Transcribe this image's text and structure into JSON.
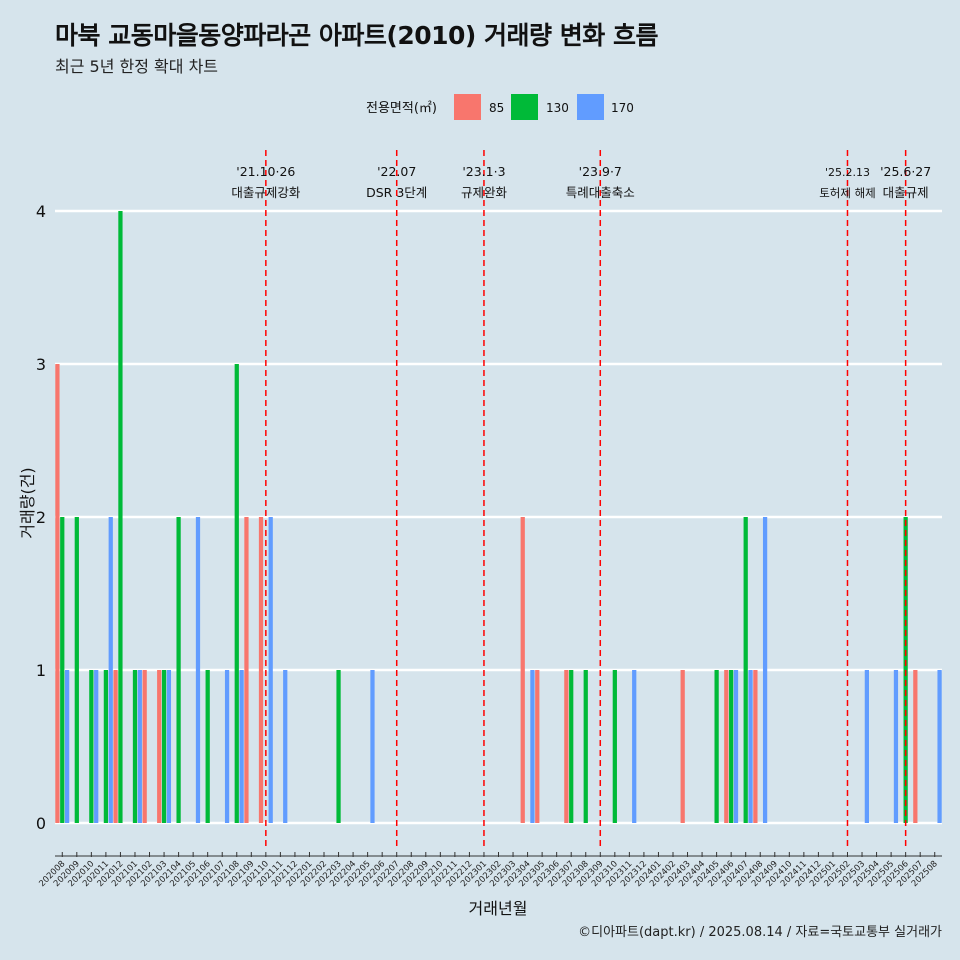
{
  "title": "마북 교동마을동양파라곤 아파트(2010) 거래량 변화 흐름",
  "subtitle": "최근 5년 한정 확대 차트",
  "caption": "©디아파트(dapt.kr) / 2025.08.14 / 자료=국토교통부 실거래가",
  "colors": {
    "background": "#d6e4ec",
    "85": "#f8766d",
    "130": "#00ba38",
    "170": "#619cff",
    "event_line": "#ff0000"
  },
  "chart_data": {
    "type": "bar",
    "xlabel": "거래년월",
    "ylabel": "거래량(건)",
    "ylim": [
      0,
      4
    ],
    "yticks": [
      0,
      1,
      2,
      3,
      4
    ],
    "legend": {
      "title": "전용면적(㎡)",
      "position": "top"
    },
    "categories": [
      "202008",
      "202009",
      "202010",
      "202011",
      "202012",
      "202101",
      "202102",
      "202103",
      "202104",
      "202105",
      "202106",
      "202107",
      "202108",
      "202109",
      "202110",
      "202111",
      "202112",
      "202201",
      "202202",
      "202203",
      "202204",
      "202205",
      "202206",
      "202207",
      "202208",
      "202209",
      "202210",
      "202211",
      "202212",
      "202301",
      "202302",
      "202303",
      "202304",
      "202305",
      "202306",
      "202307",
      "202308",
      "202309",
      "202310",
      "202311",
      "202312",
      "202401",
      "202402",
      "202403",
      "202404",
      "202405",
      "202406",
      "202407",
      "202408",
      "202409",
      "202410",
      "202411",
      "202412",
      "202501",
      "202502",
      "202503",
      "202504",
      "202505",
      "202506",
      "202507",
      "202508"
    ],
    "series": [
      {
        "name": "85",
        "color": "#f8766d",
        "values": [
          3,
          0,
          0,
          0,
          1,
          0,
          1,
          1,
          0,
          0,
          0,
          0,
          0,
          2,
          2,
          0,
          0,
          0,
          0,
          0,
          0,
          0,
          0,
          0,
          0,
          0,
          0,
          0,
          0,
          0,
          0,
          0,
          2,
          1,
          0,
          1,
          0,
          0,
          0,
          0,
          0,
          0,
          0,
          1,
          0,
          0,
          1,
          0,
          1,
          0,
          0,
          0,
          0,
          0,
          0,
          0,
          0,
          0,
          0,
          1,
          0
        ]
      },
      {
        "name": "130",
        "color": "#00ba38",
        "values": [
          2,
          2,
          1,
          1,
          4,
          1,
          0,
          1,
          2,
          0,
          1,
          0,
          3,
          0,
          0,
          0,
          0,
          0,
          0,
          1,
          0,
          0,
          0,
          0,
          0,
          0,
          0,
          0,
          0,
          0,
          0,
          0,
          0,
          0,
          0,
          1,
          1,
          0,
          1,
          0,
          0,
          0,
          0,
          0,
          0,
          1,
          1,
          2,
          0,
          0,
          0,
          0,
          0,
          0,
          0,
          0,
          0,
          0,
          2,
          0,
          0
        ]
      },
      {
        "name": "170",
        "color": "#619cff",
        "values": [
          1,
          0,
          1,
          2,
          0,
          1,
          0,
          1,
          0,
          2,
          0,
          1,
          1,
          0,
          2,
          1,
          0,
          0,
          0,
          0,
          0,
          1,
          0,
          0,
          0,
          0,
          0,
          0,
          0,
          0,
          0,
          0,
          1,
          0,
          0,
          0,
          0,
          0,
          0,
          1,
          0,
          0,
          0,
          0,
          0,
          0,
          1,
          1,
          2,
          0,
          0,
          0,
          0,
          0,
          0,
          1,
          0,
          1,
          0,
          0,
          1
        ]
      }
    ],
    "events": [
      {
        "at": "202110",
        "date": "'21.10·26",
        "label": "대출규제강화"
      },
      {
        "at": "202207",
        "date": "'22.07",
        "label": "DSR 3단계"
      },
      {
        "at": "202301",
        "date": "'23.1·3",
        "label": "규제완화"
      },
      {
        "at": "202309",
        "date": "'23.9·7",
        "label": "특례대출축소"
      },
      {
        "at": "202502",
        "date": "'25.2.13",
        "label": "토허제 해제"
      },
      {
        "at": "202506",
        "date": "'25.6·27",
        "label": "대출규제"
      }
    ]
  }
}
